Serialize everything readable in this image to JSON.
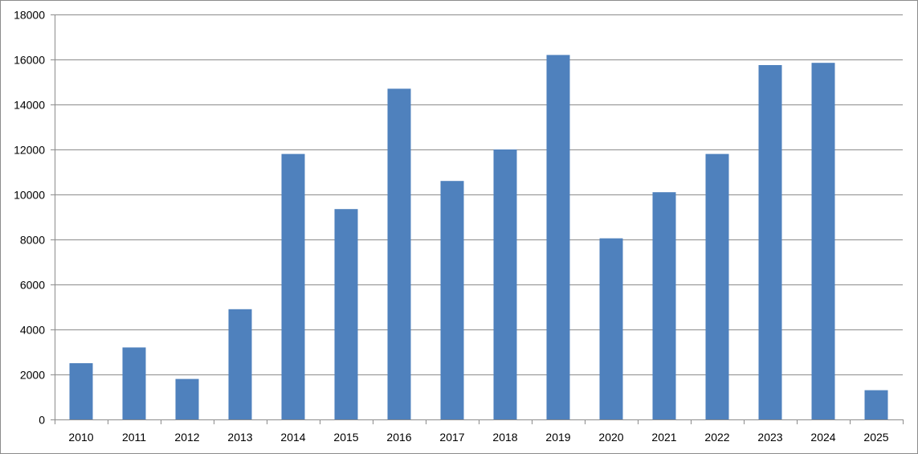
{
  "chart_data": {
    "type": "bar",
    "title": "",
    "xlabel": "",
    "ylabel": "",
    "categories": [
      "2010",
      "2011",
      "2012",
      "2013",
      "2014",
      "2015",
      "2016",
      "2017",
      "2018",
      "2019",
      "2020",
      "2021",
      "2022",
      "2023",
      "2024",
      "2025"
    ],
    "values": [
      2500,
      3200,
      1800,
      4900,
      11800,
      9350,
      14700,
      10600,
      12000,
      16200,
      8050,
      10100,
      11800,
      15750,
      15850,
      1300
    ],
    "ylim": [
      0,
      18000
    ],
    "yticks": [
      "0",
      "2000",
      "4000",
      "6000",
      "8000",
      "10000",
      "12000",
      "14000",
      "16000",
      "18000"
    ],
    "grid": true,
    "legend": "none",
    "colors": {
      "bar": "#4f81bd",
      "grid": "#8c8c8c",
      "axis": "#8c8c8c"
    }
  }
}
